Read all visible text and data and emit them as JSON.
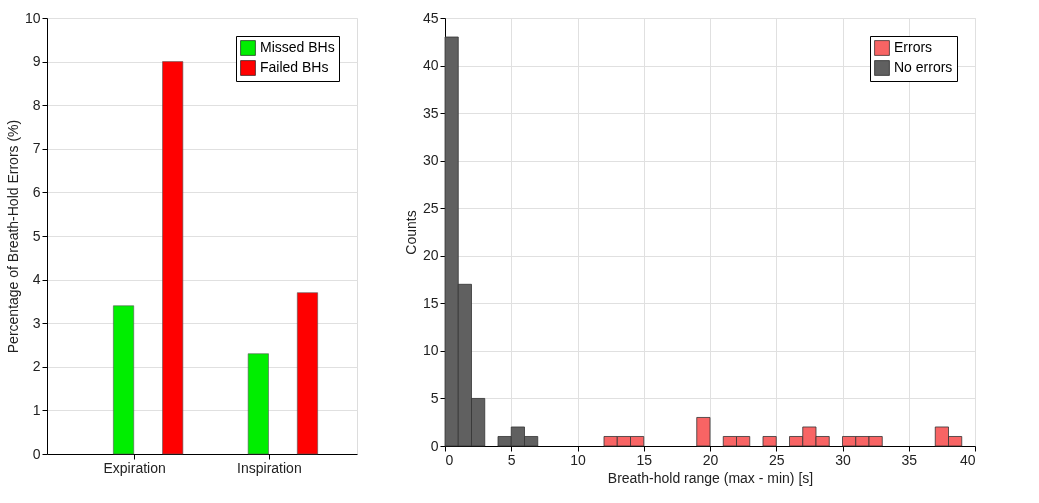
{
  "chart_data": [
    {
      "type": "bar",
      "categories": [
        "Expiration",
        "Inspiration"
      ],
      "ylabel": "Percentage of Breath-Hold Errors (%)",
      "ylim": [
        0,
        10
      ],
      "yticks": [
        0,
        1,
        2,
        3,
        4,
        5,
        6,
        7,
        8,
        9,
        10
      ],
      "grid": "y",
      "legend": "top right",
      "series": [
        {
          "name": "Missed BHs",
          "color": "#00ee00",
          "values": [
            3.4,
            2.3
          ]
        },
        {
          "name": "Failed BHs",
          "color": "#ff0000",
          "values": [
            9.0,
            3.7
          ]
        }
      ]
    },
    {
      "type": "histogram",
      "xlabel": "Breath-hold range (max - min) [s]",
      "ylabel": "Counts",
      "xlim": [
        0,
        40
      ],
      "xticks": [
        0,
        5,
        10,
        15,
        20,
        25,
        30,
        35,
        40
      ],
      "ylim": [
        0,
        45
      ],
      "yticks": [
        0,
        5,
        10,
        15,
        20,
        25,
        30,
        35,
        40,
        45
      ],
      "grid": true,
      "legend": "top right",
      "bins": [
        0,
        1,
        2,
        3,
        4,
        5,
        6,
        7,
        8,
        9,
        10,
        11,
        12,
        13,
        14,
        15,
        16,
        17,
        18,
        19,
        20,
        21,
        22,
        23,
        24,
        25,
        26,
        27,
        28,
        29,
        30,
        31,
        32,
        33,
        34,
        35,
        36,
        37,
        38,
        39,
        40
      ],
      "series": [
        {
          "name": "Errors",
          "color": "#f86464",
          "values": [
            null,
            null,
            null,
            null,
            null,
            null,
            null,
            null,
            null,
            null,
            null,
            null,
            1,
            1,
            1,
            null,
            null,
            null,
            null,
            3,
            null,
            1,
            1,
            null,
            1,
            null,
            1,
            2,
            1,
            null,
            1,
            1,
            1,
            null,
            null,
            null,
            null,
            2,
            1,
            null
          ]
        },
        {
          "name": "No errors",
          "color": "#606060",
          "values": [
            43,
            17,
            5,
            null,
            1,
            2,
            1,
            null,
            null,
            null,
            null,
            null,
            null,
            null,
            null,
            null,
            null,
            null,
            null,
            null,
            null,
            null,
            null,
            null,
            null,
            null,
            null,
            null,
            null,
            null,
            null,
            null,
            null,
            null,
            null,
            null,
            null,
            null,
            null,
            null
          ]
        }
      ]
    }
  ]
}
